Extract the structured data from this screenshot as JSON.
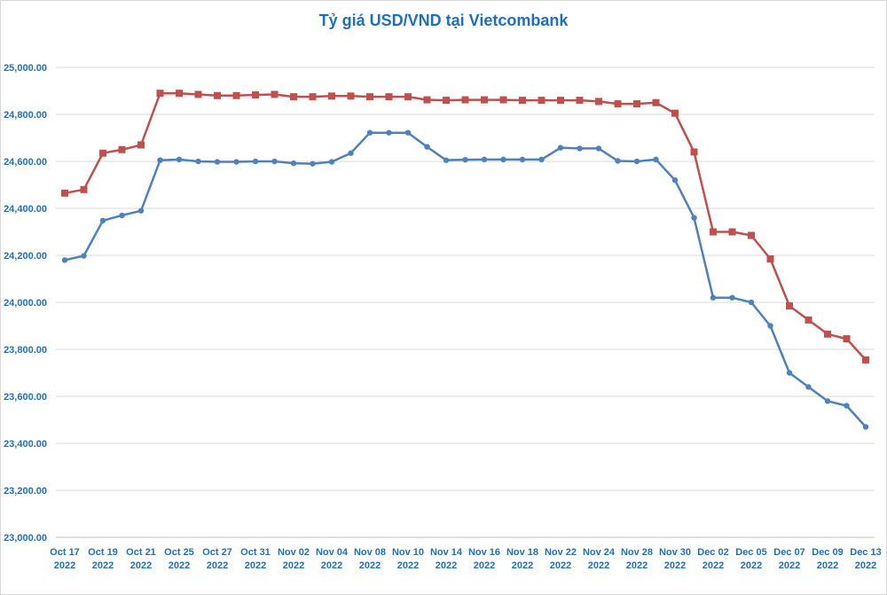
{
  "chart_data": {
    "type": "line",
    "title": "Tỷ giá USD/VND tại Vietcombank",
    "xlabel": "",
    "ylabel": "",
    "ylim": [
      23000,
      25000
    ],
    "yticks": [
      "23,000.00",
      "23,200.00",
      "23,400.00",
      "23,600.00",
      "23,800.00",
      "24,000.00",
      "24,200.00",
      "24,400.00",
      "24,600.00",
      "24,800.00",
      "25,000.00"
    ],
    "ytick_values": [
      23000,
      23200,
      23400,
      23600,
      23800,
      24000,
      24200,
      24400,
      24600,
      24800,
      25000
    ],
    "grid": true,
    "legend": "none",
    "x": [
      "Oct 17 2022",
      "Oct 18 2022",
      "Oct 19 2022",
      "Oct 20 2022",
      "Oct 21 2022",
      "Oct 24 2022",
      "Oct 25 2022",
      "Oct 26 2022",
      "Oct 27 2022",
      "Oct 28 2022",
      "Oct 31 2022",
      "Nov 01 2022",
      "Nov 02 2022",
      "Nov 03 2022",
      "Nov 04 2022",
      "Nov 07 2022",
      "Nov 08 2022",
      "Nov 09 2022",
      "Nov 10 2022",
      "Nov 11 2022",
      "Nov 14 2022",
      "Nov 15 2022",
      "Nov 16 2022",
      "Nov 17 2022",
      "Nov 18 2022",
      "Nov 21 2022",
      "Nov 22 2022",
      "Nov 23 2022",
      "Nov 24 2022",
      "Nov 25 2022",
      "Nov 28 2022",
      "Nov 29 2022",
      "Nov 30 2022",
      "Dec 01 2022",
      "Dec 02 2022",
      "Dec 05 2022",
      "Dec 05 2022",
      "Dec 06 2022",
      "Dec 07 2022",
      "Dec 08 2022",
      "Dec 09 2022",
      "Dec 12 2022",
      "Dec 13 2022"
    ],
    "xtick_labels": [
      [
        "Oct 17",
        "2022"
      ],
      [
        "Oct 19",
        "2022"
      ],
      [
        "Oct 21",
        "2022"
      ],
      [
        "Oct 25",
        "2022"
      ],
      [
        "Oct 27",
        "2022"
      ],
      [
        "Oct 31",
        "2022"
      ],
      [
        "Nov 02",
        "2022"
      ],
      [
        "Nov 04",
        "2022"
      ],
      [
        "Nov 08",
        "2022"
      ],
      [
        "Nov 10",
        "2022"
      ],
      [
        "Nov 14",
        "2022"
      ],
      [
        "Nov 16",
        "2022"
      ],
      [
        "Nov 18",
        "2022"
      ],
      [
        "Nov 22",
        "2022"
      ],
      [
        "Nov 24",
        "2022"
      ],
      [
        "Nov 28",
        "2022"
      ],
      [
        "Nov 30",
        "2022"
      ],
      [
        "Dec 02",
        "2022"
      ],
      [
        "Dec 05",
        "2022"
      ],
      [
        "Dec 07",
        "2022"
      ],
      [
        "Dec 09",
        "2022"
      ],
      [
        "Dec 13",
        "2022"
      ]
    ],
    "series": [
      {
        "color": "#c0504d",
        "marker": "square",
        "values": [
          24465,
          24480,
          24635,
          24650,
          24670,
          24890,
          24890,
          24885,
          24880,
          24880,
          24883,
          24885,
          24875,
          24875,
          24878,
          24878,
          24875,
          24875,
          24875,
          24862,
          24860,
          24862,
          24862,
          24862,
          24860,
          24860,
          24860,
          24860,
          24855,
          24845,
          24845,
          24850,
          24805,
          24640,
          24300,
          24300,
          24285,
          24185,
          23985,
          23925,
          23865,
          23845,
          23755
        ]
      },
      {
        "color": "#4f81bd",
        "marker": "circle",
        "values": [
          24180,
          24198,
          24348,
          24370,
          24390,
          24605,
          24608,
          24600,
          24598,
          24598,
          24600,
          24600,
          24592,
          24590,
          24598,
          24635,
          24722,
          24722,
          24722,
          24662,
          24605,
          24607,
          24608,
          24608,
          24608,
          24608,
          24658,
          24655,
          24655,
          24602,
          24600,
          24608,
          24520,
          24360,
          24020,
          24020,
          24000,
          23900,
          23700,
          23640,
          23580,
          23560,
          23470
        ]
      }
    ]
  }
}
